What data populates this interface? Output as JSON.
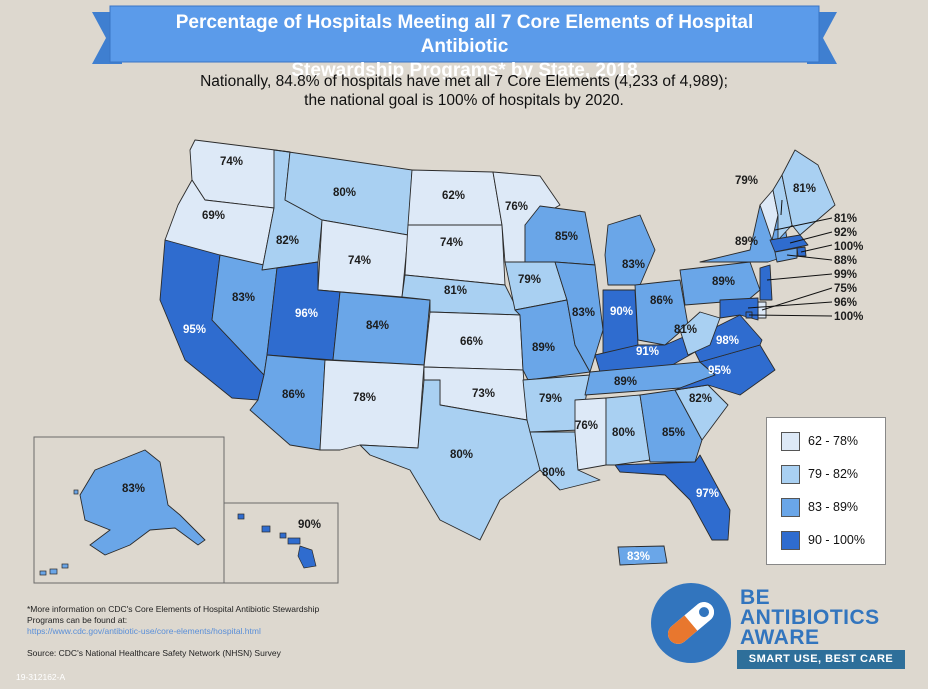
{
  "header": {
    "title_line1": "Percentage of Hospitals Meeting all 7 Core Elements of Hospital Antibiotic",
    "title_line2": "Stewardship Programs* by State, 2018",
    "subtitle_line1": "Nationally, 84.8% of hospitals have met all 7 Core Elements (4,233 of 4,989);",
    "subtitle_line2": "the national goal is 100% of hospitals by 2020."
  },
  "colors": {
    "bin1": "#dde9f7",
    "bin2": "#a9d0f2",
    "bin3": "#6aa6e8",
    "bin4": "#2f6ccf",
    "banner": "#5b9bea",
    "background": "#ddd8cf"
  },
  "legend": [
    {
      "label": "62 - 78%",
      "bin": "bin1"
    },
    {
      "label": "79 - 82%",
      "bin": "bin2"
    },
    {
      "label": "83 - 89%",
      "bin": "bin3"
    },
    {
      "label": "90 - 100%",
      "bin": "bin4"
    }
  ],
  "states": {
    "WA": "74%",
    "OR": "69%",
    "CA": "95%",
    "NV": "83%",
    "ID": "82%",
    "MT": "80%",
    "WY": "74%",
    "UT": "96%",
    "AZ": "86%",
    "CO": "84%",
    "NM": "78%",
    "ND": "62%",
    "SD": "74%",
    "NE": "81%",
    "KS": "66%",
    "OK": "73%",
    "TX": "80%",
    "MN": "76%",
    "IA": "79%",
    "MO": "89%",
    "AR": "79%",
    "LA": "80%",
    "WI": "85%",
    "IL": "83%",
    "MI": "83%",
    "IN": "90%",
    "OH": "86%",
    "KY": "91%",
    "TN": "89%",
    "MS": "76%",
    "AL": "80%",
    "GA": "85%",
    "FL": "97%",
    "SC": "82%",
    "NC": "95%",
    "VA": "98%",
    "WV": "81%",
    "PA": "89%",
    "NY": "89%",
    "VT": "79%",
    "ME": "81%",
    "AK": "83%",
    "HI": "90%",
    "PR": "83%"
  },
  "callouts": [
    "81%",
    "92%",
    "100%",
    "88%",
    "99%",
    "75%",
    "96%",
    "100%"
  ],
  "footer": {
    "note_line1": "*More information on CDC's Core Elements of Hospital Antibiotic Stewardship",
    "note_line2": "Programs can be found at:",
    "link": "https://www.cdc.gov/antibiotic-use/core-elements/hospital.html",
    "source": "Source: CDC's National Healthcare Safety Network (NHSN) Survey",
    "code": "19-312162-A"
  },
  "logo": {
    "line1": "BE",
    "line2": "ANTIBIOTICS",
    "line3": "AWARE",
    "tagline": "SMART USE, BEST CARE",
    "icon": "pill-capsule-icon"
  }
}
